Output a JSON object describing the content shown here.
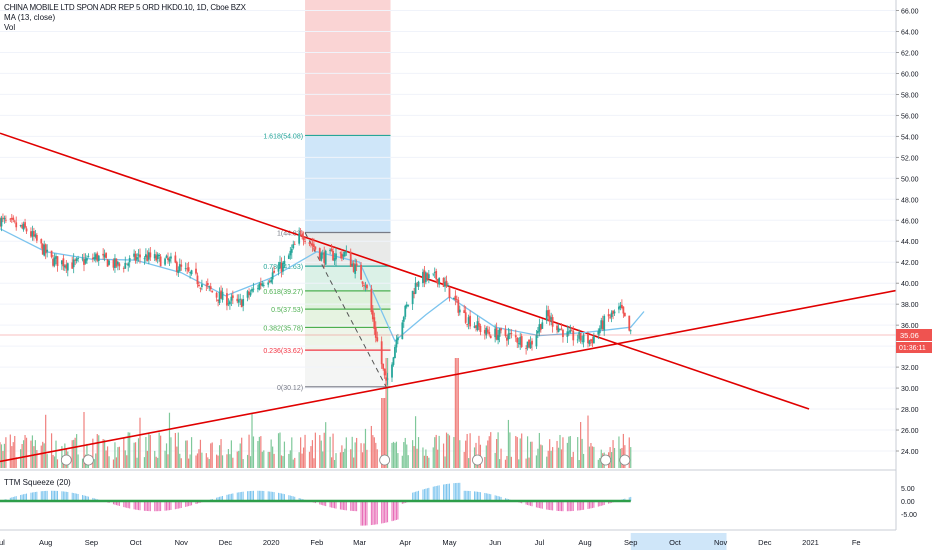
{
  "header": {
    "title": "CHINA MOBILE LTD SPON ADR REP 5 ORD HKD0.10, 1D, Cboe BZX",
    "ma_label": "MA (13, close)",
    "vol_label": "Vol"
  },
  "price_axis": {
    "ticks": [
      "66.00",
      "64.00",
      "62.00",
      "60.00",
      "58.00",
      "56.00",
      "54.00",
      "52.00",
      "50.00",
      "48.00",
      "46.00",
      "44.00",
      "42.00",
      "40.00",
      "38.00",
      "36.00",
      "34.00",
      "32.00",
      "30.00",
      "28.00",
      "26.00",
      "24.00"
    ],
    "tick_values": [
      66,
      64,
      62,
      60,
      58,
      56,
      54,
      52,
      50,
      48,
      46,
      44,
      42,
      40,
      38,
      36,
      34,
      32,
      30,
      28,
      26,
      24
    ],
    "last_price_label": "35.06",
    "last_price": 35.06,
    "countdown_label": "01:36:11"
  },
  "time_axis": {
    "labels": [
      "Jul",
      "Aug",
      "Sep",
      "Oct",
      "Nov",
      "Dec",
      "2020",
      "Feb",
      "Mar",
      "Apr",
      "May",
      "Jun",
      "Jul",
      "Aug",
      "Sep",
      "Oct",
      "Nov",
      "Dec",
      "2021",
      "Fe"
    ]
  },
  "fib": {
    "levels": [
      {
        "label": "1.618(54.08)",
        "value": 54.08,
        "color": "#26a69a"
      },
      {
        "label": "1(44.83)",
        "value": 44.83,
        "color": "#787b86"
      },
      {
        "label": "0.786(41.63)",
        "value": 41.63,
        "color": "#26a69a"
      },
      {
        "label": "0.618(39.27)",
        "value": 39.27,
        "color": "#4caf50"
      },
      {
        "label": "0.5(37.53)",
        "value": 37.53,
        "color": "#4caf50"
      },
      {
        "label": "0.382(35.78)",
        "value": 35.78,
        "color": "#4caf50"
      },
      {
        "label": "0.236(33.62)",
        "value": 33.62,
        "color": "#f23645"
      },
      {
        "label": "0(30.12)",
        "value": 30.12,
        "color": "#787b86"
      }
    ]
  },
  "indicator": {
    "label": "TTM Squeeze (20)",
    "ticks": [
      "5.00",
      "0.00",
      "-5.00"
    ],
    "tick_values": [
      5,
      0,
      -5
    ]
  },
  "colors": {
    "up": "#26a69a",
    "down": "#ef5350",
    "trendline": "#e00000",
    "ma": "#7cc4ee",
    "vol_up": "#7fc89a",
    "vol_down": "#f0807d"
  },
  "chart_data": {
    "type": "candlestick",
    "title": "CHINA MOBILE LTD SPON ADR REP 5 ORD HKD0.10, 1D, Cboe BZX",
    "ylim": [
      22.5,
      66.5
    ],
    "x_range": [
      "2019-07",
      "2021-02"
    ],
    "price_anchors": [
      {
        "x": "2019-07-01",
        "close": 46.0
      },
      {
        "x": "2019-07-20",
        "close": 45.0
      },
      {
        "x": "2019-08-05",
        "close": 42.2
      },
      {
        "x": "2019-08-20",
        "close": 41.8
      },
      {
        "x": "2019-09-05",
        "close": 42.5
      },
      {
        "x": "2019-09-20",
        "close": 41.6
      },
      {
        "x": "2019-10-05",
        "close": 42.6
      },
      {
        "x": "2019-10-25",
        "close": 42.0
      },
      {
        "x": "2019-11-10",
        "close": 40.5
      },
      {
        "x": "2019-11-25",
        "close": 38.8
      },
      {
        "x": "2019-12-10",
        "close": 38.0
      },
      {
        "x": "2019-12-25",
        "close": 40.0
      },
      {
        "x": "2020-01-10",
        "close": 41.8
      },
      {
        "x": "2020-01-22",
        "close": 44.8
      },
      {
        "x": "2020-02-05",
        "close": 42.5
      },
      {
        "x": "2020-02-20",
        "close": 42.8
      },
      {
        "x": "2020-03-05",
        "close": 40.0
      },
      {
        "x": "2020-03-19",
        "close": 30.2
      },
      {
        "x": "2020-03-28",
        "close": 36.0
      },
      {
        "x": "2020-04-10",
        "close": 40.5
      },
      {
        "x": "2020-04-25",
        "close": 40.5
      },
      {
        "x": "2020-05-10",
        "close": 37.0
      },
      {
        "x": "2020-05-25",
        "close": 35.3
      },
      {
        "x": "2020-06-10",
        "close": 35.0
      },
      {
        "x": "2020-06-25",
        "close": 34.2
      },
      {
        "x": "2020-07-05",
        "close": 37.0
      },
      {
        "x": "2020-07-20",
        "close": 35.0
      },
      {
        "x": "2020-08-05",
        "close": 34.5
      },
      {
        "x": "2020-08-15",
        "close": 36.5
      },
      {
        "x": "2020-08-25",
        "close": 37.5
      },
      {
        "x": "2020-09-01",
        "close": 35.06
      }
    ],
    "ma_anchors": [
      {
        "x": "2019-07-01",
        "value": 45.2
      },
      {
        "x": "2019-08-01",
        "value": 43.0
      },
      {
        "x": "2019-09-01",
        "value": 42.3
      },
      {
        "x": "2019-10-01",
        "value": 42.2
      },
      {
        "x": "2019-11-01",
        "value": 41.0
      },
      {
        "x": "2019-12-01",
        "value": 38.8
      },
      {
        "x": "2020-01-01",
        "value": 40.5
      },
      {
        "x": "2020-02-01",
        "value": 43.0
      },
      {
        "x": "2020-03-01",
        "value": 42.0
      },
      {
        "x": "2020-03-25",
        "value": 34.5
      },
      {
        "x": "2020-04-15",
        "value": 37.0
      },
      {
        "x": "2020-05-01",
        "value": 38.7
      },
      {
        "x": "2020-06-01",
        "value": 35.8
      },
      {
        "x": "2020-07-01",
        "value": 35.0
      },
      {
        "x": "2020-08-01",
        "value": 35.3
      },
      {
        "x": "2020-09-01",
        "value": 35.8
      },
      {
        "x": "2020-09-10",
        "value": 37.3
      }
    ],
    "trendlines": [
      {
        "name": "descending",
        "from": {
          "x": "2019-07-01",
          "y": 54.3
        },
        "to": {
          "x": "2020-12-31",
          "y": 28.0
        }
      },
      {
        "name": "ascending",
        "from": {
          "x": "2019-07-01",
          "y": 23.0
        },
        "to": {
          "x": "2021-02-28",
          "y": 39.3
        }
      }
    ],
    "volume_spikes": [
      "2020-03-20",
      "2020-05-06"
    ]
  }
}
